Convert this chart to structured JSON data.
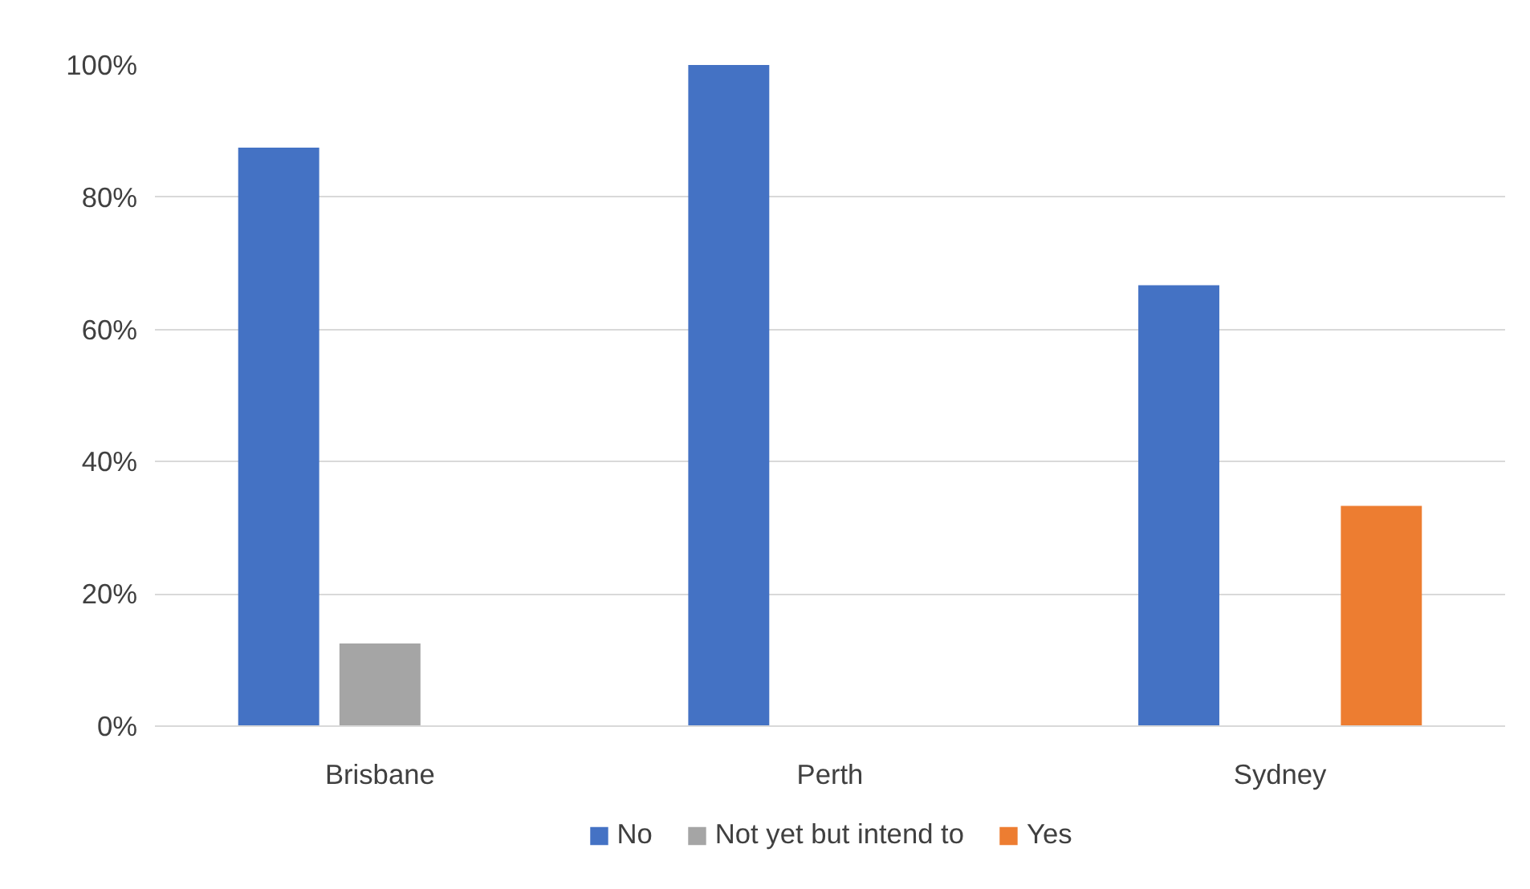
{
  "chart_data": {
    "type": "bar",
    "categories": [
      "Brisbane",
      "Perth",
      "Sydney"
    ],
    "series": [
      {
        "name": "No",
        "color": "#4472c4",
        "values": [
          87.5,
          100,
          66.7
        ]
      },
      {
        "name": "Not yet but intend to",
        "color": "#a5a5a5",
        "values": [
          12.5,
          0,
          0
        ]
      },
      {
        "name": "Yes",
        "color": "#ed7d31",
        "values": [
          0,
          0,
          33.3
        ]
      }
    ],
    "ylim": [
      0,
      100
    ],
    "yticks": [
      {
        "value": 0,
        "label": "0%"
      },
      {
        "value": 20,
        "label": "20%"
      },
      {
        "value": 40,
        "label": "40%"
      },
      {
        "value": 60,
        "label": "60%"
      },
      {
        "value": 80,
        "label": "80%"
      },
      {
        "value": 100,
        "label": "100%"
      }
    ],
    "grid": "y",
    "legend": "bottom"
  }
}
